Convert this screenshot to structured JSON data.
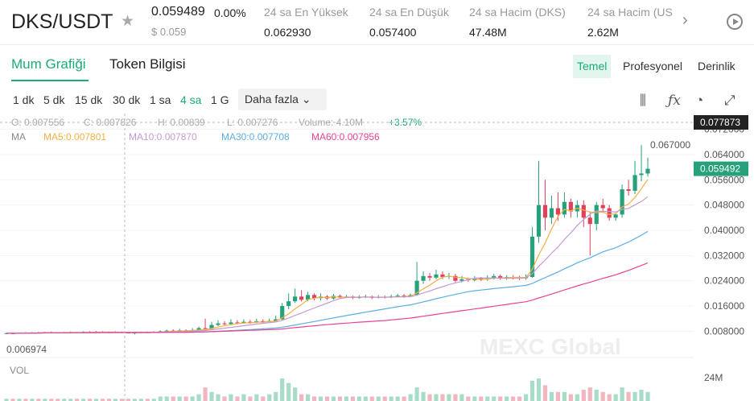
{
  "header": {
    "pair": "DKS/USDT",
    "price": "0.059489",
    "change": "0.00%",
    "usd_price": "$ 0.059",
    "stats": [
      {
        "label": "24 sa En Yüksek",
        "value": "0.062930"
      },
      {
        "label": "24 sa En Düşük",
        "value": "0.057400"
      },
      {
        "label": "24 sa Hacim (DKS)",
        "value": "47.48M"
      },
      {
        "label": "24 sa Hacim (US",
        "value": "2.62M"
      }
    ]
  },
  "tabs": {
    "chart": "Mum Grafiği",
    "token": "Token Bilgisi"
  },
  "views": {
    "basic": "Temel",
    "pro": "Profesyonel",
    "depth": "Derinlik"
  },
  "intervals": [
    "1 dk",
    "5 dk",
    "15 dk",
    "30 dk",
    "1 sa",
    "4 sa",
    "1 G"
  ],
  "more_label": "Daha fazla",
  "legend": {
    "open": "O: 0.007556",
    "close": "C: 0.007826",
    "high": "H: 0.00839",
    "low": "L: 0.007276",
    "volume": "Volume: 4.10M",
    "pct": "+3.57%",
    "ma_label": "MA",
    "ma5": "MA5:0.007801",
    "ma10": "MA10:0.007870",
    "ma30": "MA30:0.007708",
    "ma60": "MA60:0.007956"
  },
  "colors": {
    "up": "#26a17b",
    "down": "#e0405a",
    "ma5": "#f5b041",
    "ma10": "#c39bd3",
    "ma30": "#5dade2",
    "ma60": "#e84393",
    "accent": "#1aab7a"
  },
  "chart_data": {
    "type": "candlestick",
    "y_ticks": [
      "0.072000",
      "0.064000",
      "0.056000",
      "0.048000",
      "0.040000",
      "0.032000",
      "0.024000",
      "0.016000",
      "0.008000"
    ],
    "ylim": [
      0.003,
      0.077
    ],
    "crosshair_price": "0.077873",
    "last_price": "0.059492",
    "max_label": "0.067000",
    "min_label": "0.006974",
    "vol_label": "VOL",
    "vol_tick": "24M",
    "watermark": "MEXC Global",
    "candles": [
      [
        0.0072,
        0.0074,
        0.0071,
        0.0075
      ],
      [
        0.0074,
        0.0073,
        0.0071,
        0.0076
      ],
      [
        0.0073,
        0.0075,
        0.0072,
        0.0076
      ],
      [
        0.0075,
        0.0074,
        0.0073,
        0.0077
      ],
      [
        0.0074,
        0.0076,
        0.0073,
        0.0077
      ],
      [
        0.0076,
        0.0075,
        0.0074,
        0.0078
      ],
      [
        0.0075,
        0.0077,
        0.0074,
        0.0078
      ],
      [
        0.0077,
        0.0076,
        0.0075,
        0.0079
      ],
      [
        0.0076,
        0.0075,
        0.0073,
        0.0077
      ],
      [
        0.0075,
        0.0076,
        0.0074,
        0.0078
      ],
      [
        0.0076,
        0.0077,
        0.0075,
        0.0079
      ],
      [
        0.0077,
        0.0076,
        0.0074,
        0.0078
      ],
      [
        0.0076,
        0.0078,
        0.0075,
        0.008
      ],
      [
        0.0078,
        0.0077,
        0.0075,
        0.008
      ],
      [
        0.0077,
        0.0078,
        0.0076,
        0.0081
      ],
      [
        0.0078,
        0.0077,
        0.0075,
        0.008
      ],
      [
        0.0077,
        0.0076,
        0.0074,
        0.0079
      ],
      [
        0.0076,
        0.0078,
        0.0075,
        0.008
      ],
      [
        0.0078,
        0.0076,
        0.0074,
        0.0079
      ],
      [
        0.0076,
        0.0075,
        0.0073,
        0.0078
      ],
      [
        0.0075,
        0.0076,
        0.007,
        0.0078
      ],
      [
        0.0076,
        0.0077,
        0.0075,
        0.0079
      ],
      [
        0.0077,
        0.0076,
        0.0074,
        0.0079
      ],
      [
        0.0076,
        0.0078,
        0.0075,
        0.008
      ],
      [
        0.0078,
        0.008,
        0.0077,
        0.0083
      ],
      [
        0.008,
        0.0082,
        0.0079,
        0.0085
      ],
      [
        0.0082,
        0.0081,
        0.0079,
        0.0086
      ],
      [
        0.0081,
        0.0083,
        0.008,
        0.0088
      ],
      [
        0.0083,
        0.0082,
        0.008,
        0.0086
      ],
      [
        0.0082,
        0.0084,
        0.0081,
        0.009
      ],
      [
        0.0084,
        0.009,
        0.0083,
        0.0095
      ],
      [
        0.009,
        0.0088,
        0.0085,
        0.012
      ],
      [
        0.0088,
        0.01,
        0.0086,
        0.011
      ],
      [
        0.01,
        0.0105,
        0.0096,
        0.0115
      ],
      [
        0.0105,
        0.0103,
        0.0099,
        0.0112
      ],
      [
        0.0103,
        0.0108,
        0.0101,
        0.0118
      ],
      [
        0.0108,
        0.0106,
        0.0102,
        0.0115
      ],
      [
        0.0106,
        0.011,
        0.0104,
        0.0118
      ],
      [
        0.011,
        0.0108,
        0.0104,
        0.0116
      ],
      [
        0.0108,
        0.0112,
        0.0106,
        0.012
      ],
      [
        0.0112,
        0.011,
        0.0106,
        0.0118
      ],
      [
        0.011,
        0.0113,
        0.0108,
        0.012
      ],
      [
        0.0113,
        0.0118,
        0.011,
        0.013
      ],
      [
        0.0118,
        0.016,
        0.0115,
        0.017
      ],
      [
        0.016,
        0.0175,
        0.015,
        0.02
      ],
      [
        0.0175,
        0.019,
        0.017,
        0.0215
      ],
      [
        0.019,
        0.018,
        0.0175,
        0.021
      ],
      [
        0.018,
        0.0195,
        0.0175,
        0.0205
      ],
      [
        0.0195,
        0.0185,
        0.0178,
        0.02
      ],
      [
        0.0185,
        0.019,
        0.0178,
        0.02
      ],
      [
        0.019,
        0.0184,
        0.018,
        0.0195
      ],
      [
        0.0184,
        0.0192,
        0.018,
        0.0198
      ],
      [
        0.0192,
        0.0188,
        0.0182,
        0.0196
      ],
      [
        0.0188,
        0.019,
        0.0185,
        0.0195
      ],
      [
        0.019,
        0.0186,
        0.0182,
        0.0193
      ],
      [
        0.0186,
        0.0188,
        0.0183,
        0.0194
      ],
      [
        0.0188,
        0.019,
        0.0185,
        0.0196
      ],
      [
        0.019,
        0.0186,
        0.0182,
        0.0193
      ],
      [
        0.0186,
        0.0189,
        0.0184,
        0.0194
      ],
      [
        0.0189,
        0.0187,
        0.0184,
        0.0193
      ],
      [
        0.0187,
        0.0191,
        0.0185,
        0.0196
      ],
      [
        0.0191,
        0.0193,
        0.0187,
        0.0199
      ],
      [
        0.0193,
        0.019,
        0.0186,
        0.0198
      ],
      [
        0.019,
        0.0195,
        0.0188,
        0.02
      ],
      [
        0.0195,
        0.024,
        0.0192,
        0.03
      ],
      [
        0.024,
        0.0255,
        0.023,
        0.027
      ],
      [
        0.0255,
        0.025,
        0.024,
        0.0265
      ],
      [
        0.025,
        0.026,
        0.0245,
        0.0275
      ],
      [
        0.026,
        0.0252,
        0.0245,
        0.027
      ],
      [
        0.0252,
        0.0255,
        0.0245,
        0.0265
      ],
      [
        0.0255,
        0.024,
        0.0235,
        0.0262
      ],
      [
        0.024,
        0.0245,
        0.0235,
        0.0255
      ],
      [
        0.0245,
        0.0242,
        0.0237,
        0.025
      ],
      [
        0.0242,
        0.0248,
        0.0238,
        0.0255
      ],
      [
        0.0248,
        0.0244,
        0.0239,
        0.0252
      ],
      [
        0.0244,
        0.025,
        0.024,
        0.0258
      ],
      [
        0.025,
        0.0255,
        0.0244,
        0.0262
      ],
      [
        0.0255,
        0.0248,
        0.0243,
        0.026
      ],
      [
        0.0248,
        0.0252,
        0.0243,
        0.0258
      ],
      [
        0.0252,
        0.025,
        0.0244,
        0.0258
      ],
      [
        0.025,
        0.0248,
        0.0242,
        0.0256
      ],
      [
        0.0248,
        0.0252,
        0.0243,
        0.026
      ],
      [
        0.0252,
        0.038,
        0.025,
        0.041
      ],
      [
        0.038,
        0.048,
        0.036,
        0.062
      ],
      [
        0.048,
        0.044,
        0.04,
        0.056
      ],
      [
        0.044,
        0.047,
        0.042,
        0.051
      ],
      [
        0.047,
        0.045,
        0.043,
        0.052
      ],
      [
        0.045,
        0.049,
        0.044,
        0.052
      ],
      [
        0.049,
        0.046,
        0.044,
        0.05
      ],
      [
        0.046,
        0.048,
        0.044,
        0.0495
      ],
      [
        0.048,
        0.044,
        0.041,
        0.0495
      ],
      [
        0.044,
        0.042,
        0.032,
        0.046
      ],
      [
        0.042,
        0.048,
        0.04,
        0.049
      ],
      [
        0.048,
        0.047,
        0.0455,
        0.05
      ],
      [
        0.047,
        0.044,
        0.043,
        0.048
      ],
      [
        0.044,
        0.045,
        0.043,
        0.0455
      ],
      [
        0.045,
        0.053,
        0.044,
        0.0545
      ],
      [
        0.053,
        0.0525,
        0.051,
        0.056
      ],
      [
        0.0525,
        0.0575,
        0.0515,
        0.062
      ],
      [
        0.0575,
        0.058,
        0.0555,
        0.067
      ],
      [
        0.058,
        0.0595,
        0.057,
        0.063
      ]
    ],
    "volumes": [
      0.1,
      0.1,
      0.1,
      0.1,
      0.1,
      0.1,
      0.1,
      0.1,
      0.1,
      0.1,
      0.1,
      0.1,
      0.1,
      0.1,
      0.1,
      0.1,
      0.1,
      0.1,
      0.1,
      0.1,
      0.1,
      0.1,
      0.1,
      0.1,
      0.2,
      0.2,
      0.2,
      0.2,
      0.2,
      0.2,
      0.3,
      0.6,
      0.4,
      0.3,
      0.2,
      0.3,
      0.2,
      0.3,
      0.2,
      0.3,
      0.2,
      0.3,
      0.4,
      1.0,
      0.8,
      0.6,
      0.3,
      0.3,
      0.2,
      0.2,
      0.2,
      0.2,
      0.2,
      0.2,
      0.2,
      0.2,
      0.2,
      0.2,
      0.2,
      0.2,
      0.2,
      0.2,
      0.2,
      0.3,
      0.6,
      0.4,
      0.3,
      0.3,
      0.3,
      0.3,
      0.3,
      0.3,
      0.2,
      0.2,
      0.2,
      0.2,
      0.2,
      0.2,
      0.2,
      0.2,
      0.2,
      0.3,
      0.9,
      1.0,
      0.7,
      0.4,
      0.4,
      0.4,
      0.3,
      0.3,
      0.5,
      0.6,
      0.5,
      0.4,
      0.3,
      0.3,
      0.6,
      0.4,
      0.4,
      0.5,
      0.4
    ]
  }
}
